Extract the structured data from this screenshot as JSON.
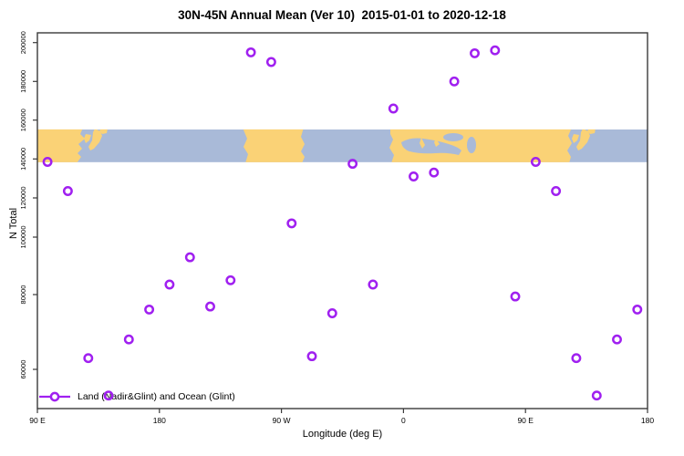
{
  "title": "30N-45N Annual Mean (Ver 10)  2015-01-01 to 2020-12-18",
  "chart_data": {
    "type": "scatter",
    "title": "30N-45N Annual Mean (Ver 10)  2015-01-01 to 2020-12-18",
    "xlabel": "Longitude (deg E)",
    "ylabel": "N Total",
    "x_axis": {
      "range_deg": [
        90,
        540
      ],
      "note": "longitude wraps around the globe: 90E to 180 to 90W to 0 to 90E to 180",
      "ticks": [
        {
          "lon": 90,
          "label": "90 E"
        },
        {
          "lon": 180,
          "label": "180"
        },
        {
          "lon": 270,
          "label": "90 W"
        },
        {
          "lon": 360,
          "label": "0"
        },
        {
          "lon": 450,
          "label": "90 E"
        },
        {
          "lon": 540,
          "label": "180"
        }
      ]
    },
    "y_axis": {
      "ticks": [
        {
          "value": 200000,
          "label": "200000"
        },
        {
          "value": 180000,
          "label": "180000"
        },
        {
          "value": 160000,
          "label": "160000"
        },
        {
          "value": 140000,
          "label": "140000"
        },
        {
          "value": 120000,
          "label": "120000"
        },
        {
          "value": 100000,
          "label": "100000"
        },
        {
          "value": 80000,
          "label": "80000"
        },
        {
          "value": 60000,
          "label": "60000"
        }
      ]
    },
    "legend": {
      "label": "Land (Nadir&Glint) and Ocean (Glint)",
      "position": "bottom-left",
      "marker": "open-circle-on-line"
    },
    "series": [
      {
        "name": "Land (Nadir&Glint) and Ocean (Glint)",
        "marker": "open-circle",
        "color": "#A020F0",
        "points": [
          {
            "lon": 97.5,
            "n_total": 138500
          },
          {
            "lon": 112.5,
            "n_total": 123500
          },
          {
            "lon": 127.5,
            "n_total": 63000
          },
          {
            "lon": 142.5,
            "n_total": 53000
          },
          {
            "lon": 157.5,
            "n_total": 68000
          },
          {
            "lon": 172.5,
            "n_total": 76000
          },
          {
            "lon": 187.5,
            "n_total": 83500
          },
          {
            "lon": 202.5,
            "n_total": 93000
          },
          {
            "lon": 217.5,
            "n_total": 76800
          },
          {
            "lon": 232.5,
            "n_total": 85000
          },
          {
            "lon": 247.5,
            "n_total": 195000
          },
          {
            "lon": 262.5,
            "n_total": 190000
          },
          {
            "lon": 277.5,
            "n_total": 107000
          },
          {
            "lon": 292.5,
            "n_total": 63500
          },
          {
            "lon": 307.5,
            "n_total": 75000
          },
          {
            "lon": 322.5,
            "n_total": 137500
          },
          {
            "lon": 337.5,
            "n_total": 83500
          },
          {
            "lon": 352.5,
            "n_total": 166000
          },
          {
            "lon": 367.5,
            "n_total": 131000
          },
          {
            "lon": 382.5,
            "n_total": 133000
          },
          {
            "lon": 397.5,
            "n_total": 180000
          },
          {
            "lon": 412.5,
            "n_total": 194500
          },
          {
            "lon": 427.5,
            "n_total": 196000
          },
          {
            "lon": 442.5,
            "n_total": 79500
          },
          {
            "lon": 457.5,
            "n_total": 138500
          },
          {
            "lon": 472.5,
            "n_total": 123500
          },
          {
            "lon": 487.5,
            "n_total": 63000
          },
          {
            "lon": 502.5,
            "n_total": 53000
          },
          {
            "lon": 517.5,
            "n_total": 68000
          },
          {
            "lon": 532.5,
            "n_total": 76000
          }
        ]
      }
    ],
    "map_band": {
      "description": "30N-45N world land/ocean strip drawn across the plot",
      "value_top": 155200,
      "value_bottom": 138300,
      "land_color": "#FAD276",
      "ocean_color": "#A9BAD8"
    },
    "frame_color": "#3a3a3a",
    "grid": false
  }
}
